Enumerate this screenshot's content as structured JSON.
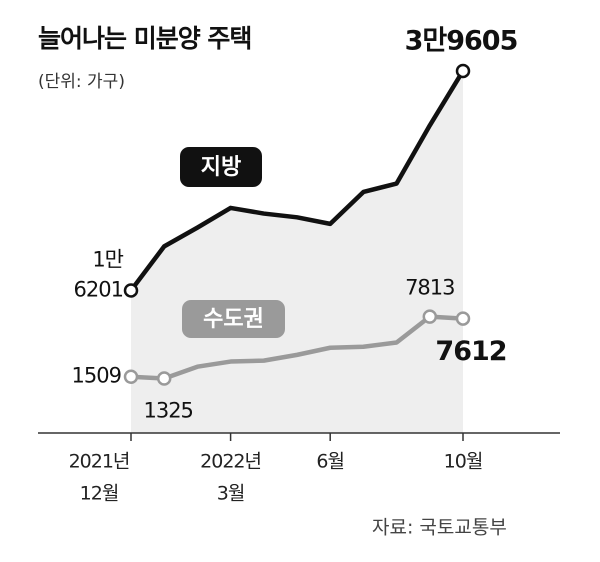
{
  "chart_data": {
    "type": "line",
    "title": "늘어나는 미분양 주택",
    "subtitle": "(단위: 가구)",
    "source": "자료: 국토교통부",
    "categories": [
      [
        "2021년",
        "12월"
      ],
      null,
      null,
      [
        "2022년",
        "3월"
      ],
      null,
      null,
      [
        "6월"
      ],
      null,
      null,
      null,
      [
        "10월"
      ]
    ],
    "ylim": [
      1000,
      39600
    ],
    "y2lim": [
      -4400,
      33600
    ],
    "series": [
      {
        "name": "지방",
        "color": "#111111",
        "values": [
          16201,
          20900,
          22900,
          25000,
          24400,
          24000,
          23300,
          26700,
          27600,
          33800,
          39605
        ],
        "value_labels": [
          [
            "1만",
            "6201"
          ],
          null,
          null,
          null,
          null,
          null,
          null,
          null,
          null,
          null,
          "3만9605"
        ]
      },
      {
        "name": "수도권",
        "color": "#9a9a9a",
        "axis": "y2",
        "values": [
          1509,
          1325,
          2560,
          3100,
          3200,
          3800,
          4550,
          4650,
          5100,
          7813,
          7612
        ]
      }
    ]
  }
}
